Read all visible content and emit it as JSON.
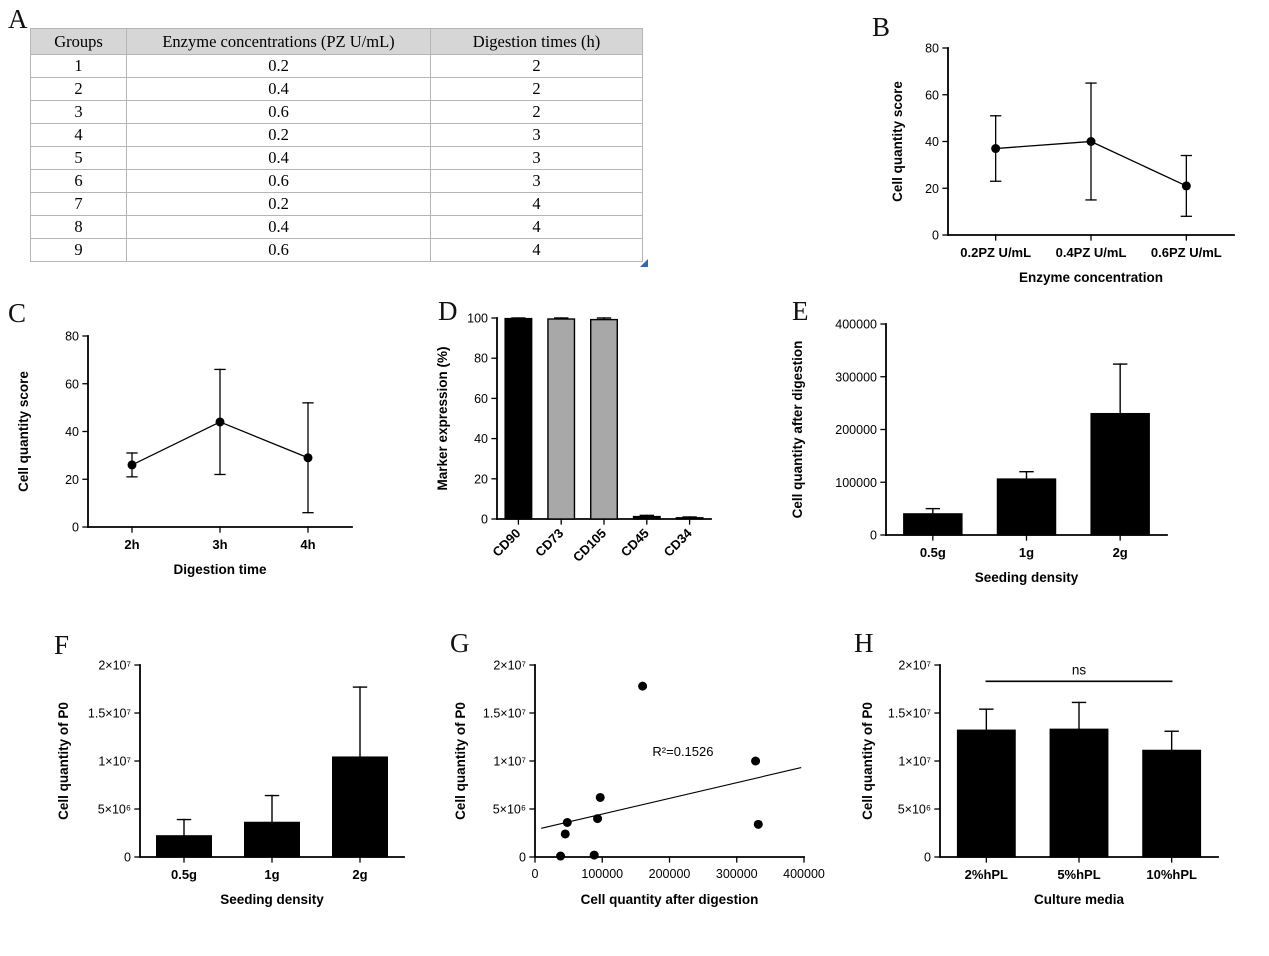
{
  "panels": {
    "A": {
      "letter": "A",
      "table": {
        "headers": [
          "Groups",
          "Enzyme concentrations (PZ U/mL)",
          "Digestion times (h)"
        ],
        "rows": [
          [
            "1",
            "0.2",
            "2"
          ],
          [
            "2",
            "0.4",
            "2"
          ],
          [
            "3",
            "0.6",
            "2"
          ],
          [
            "4",
            "0.2",
            "3"
          ],
          [
            "5",
            "0.4",
            "3"
          ],
          [
            "6",
            "0.6",
            "3"
          ],
          [
            "7",
            "0.2",
            "4"
          ],
          [
            "8",
            "0.4",
            "4"
          ],
          [
            "9",
            "0.6",
            "4"
          ]
        ]
      }
    },
    "B": {
      "letter": "B"
    },
    "C": {
      "letter": "C"
    },
    "D": {
      "letter": "D"
    },
    "E": {
      "letter": "E"
    },
    "F": {
      "letter": "F"
    },
    "G": {
      "letter": "G"
    },
    "H": {
      "letter": "H"
    }
  },
  "colors": {
    "bar_black": "#000000",
    "bar_gray": "#a8a8a8",
    "table_header_bg": "#d6d6d6"
  },
  "chart_data": [
    {
      "id": "B",
      "type": "pointline",
      "categories": [
        "0.2PZ U/mL",
        "0.4PZ U/mL",
        "0.6PZ U/mL"
      ],
      "values": [
        37,
        40,
        21
      ],
      "errors": [
        14,
        25,
        13
      ],
      "xlabel": "Enzyme concentration",
      "ylabel": "Cell quantity score",
      "ylim": [
        0,
        80
      ],
      "yticks": [
        0,
        20,
        40,
        60,
        80
      ]
    },
    {
      "id": "C",
      "type": "pointline",
      "categories": [
        "2h",
        "3h",
        "4h"
      ],
      "values": [
        26,
        44,
        29
      ],
      "errors": [
        5,
        22,
        23
      ],
      "xlabel": "Digestion time",
      "ylabel": "Cell quantity score",
      "ylim": [
        0,
        80
      ],
      "yticks": [
        0,
        20,
        40,
        60,
        80
      ]
    },
    {
      "id": "D",
      "type": "bar",
      "categories": [
        "CD90",
        "CD73",
        "CD105",
        "CD45",
        "CD34"
      ],
      "values": [
        99.7,
        99.5,
        99.2,
        1.2,
        0.6
      ],
      "errors": [
        0.3,
        0.5,
        0.8,
        0.6,
        0.4
      ],
      "bar_colors": [
        "#000000",
        "#a8a8a8",
        "#a8a8a8",
        "#000000",
        "#a8a8a8"
      ],
      "xtick_angle": -45,
      "xlabel": "",
      "ylabel": "Marker expression (%)",
      "ylim": [
        0,
        100
      ],
      "yticks": [
        0,
        20,
        40,
        60,
        80,
        100
      ]
    },
    {
      "id": "E",
      "type": "bar",
      "categories": [
        "0.5g",
        "1g",
        "2g"
      ],
      "values": [
        40000,
        106000,
        230000
      ],
      "errors": [
        10000,
        14000,
        94000
      ],
      "bar_colors": [
        "#000000",
        "#000000",
        "#000000"
      ],
      "xlabel": "Seeding density",
      "ylabel": "Cell quantity after digestion",
      "ylim": [
        0,
        400000
      ],
      "yticks": [
        0,
        100000,
        200000,
        300000,
        400000
      ],
      "ytick_labels": [
        "0",
        "100000",
        "200000",
        "300000",
        "400000"
      ]
    },
    {
      "id": "F",
      "type": "bar",
      "categories": [
        "0.5g",
        "1g",
        "2g"
      ],
      "values": [
        2200000,
        3600000,
        10400000
      ],
      "errors": [
        1700000,
        2800000,
        7300000
      ],
      "bar_colors": [
        "#000000",
        "#000000",
        "#000000"
      ],
      "xlabel": "Seeding density",
      "ylabel": "Cell quantity of P0",
      "ylim": [
        0,
        20000000
      ],
      "yticks": [
        0,
        5000000,
        10000000,
        15000000,
        20000000
      ],
      "ytick_labels": [
        "0",
        "5×10⁶",
        "1×10⁷",
        "1.5×10⁷",
        "2×10⁷"
      ]
    },
    {
      "id": "G",
      "type": "scatter",
      "points": [
        [
          38000,
          100000
        ],
        [
          45000,
          2400000
        ],
        [
          48000,
          3600000
        ],
        [
          88000,
          200000
        ],
        [
          93000,
          4000000
        ],
        [
          97000,
          6200000
        ],
        [
          160000,
          17800000
        ],
        [
          328000,
          10000000
        ],
        [
          332000,
          3400000
        ]
      ],
      "trendline": {
        "x1": 10000,
        "y1": 3000000,
        "x2": 395000,
        "y2": 9300000
      },
      "annotation": {
        "text": "R²=0.1526",
        "x": 220000,
        "y": 10500000
      },
      "xlabel": "Cell quantity after digestion",
      "ylabel": "Cell quantity of P0",
      "xlim": [
        0,
        400000
      ],
      "xticks": [
        0,
        100000,
        200000,
        300000,
        400000
      ],
      "xtick_labels": [
        "0",
        "100000",
        "200000",
        "300000",
        "400000"
      ],
      "ylim": [
        0,
        20000000
      ],
      "yticks": [
        0,
        5000000,
        10000000,
        15000000,
        20000000
      ],
      "ytick_labels": [
        "0",
        "5×10⁶",
        "1×10⁷",
        "1.5×10⁷",
        "2×10⁷"
      ]
    },
    {
      "id": "H",
      "type": "bar",
      "categories": [
        "2%hPL",
        "5%hPL",
        "10%hPL"
      ],
      "values": [
        13200000,
        13300000,
        11100000
      ],
      "errors": [
        2200000,
        2800000,
        2000000
      ],
      "bar_colors": [
        "#000000",
        "#000000",
        "#000000"
      ],
      "comparison": {
        "label": "ns",
        "from": 0,
        "to": 2,
        "y": 18300000
      },
      "xlabel": "Culture media",
      "ylabel": "Cell quantity of P0",
      "ylim": [
        0,
        20000000
      ],
      "yticks": [
        0,
        5000000,
        10000000,
        15000000,
        20000000
      ],
      "ytick_labels": [
        "0",
        "5×10⁶",
        "1×10⁷",
        "1.5×10⁷",
        "2×10⁷"
      ]
    }
  ]
}
